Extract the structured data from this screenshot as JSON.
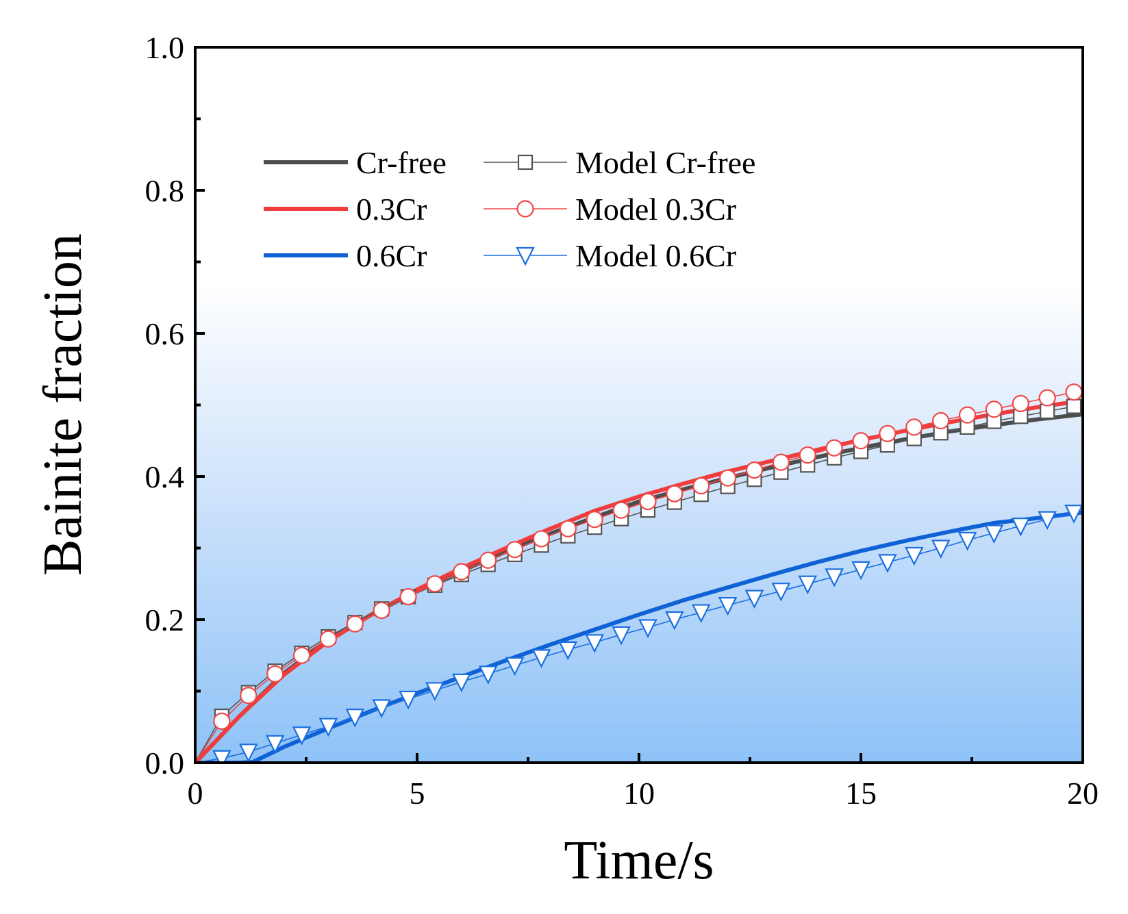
{
  "chart_data": {
    "type": "line",
    "title": "",
    "xlabel": "Time/s",
    "ylabel": "Bainite fraction",
    "xlim": [
      0,
      20
    ],
    "ylim": [
      0.0,
      1.0
    ],
    "xticks": [
      0,
      5,
      10,
      15,
      20
    ],
    "xtick_labels": [
      "0",
      "5",
      "10",
      "15",
      "20"
    ],
    "yticks": [
      0.0,
      0.2,
      0.4,
      0.6,
      0.8,
      1.0
    ],
    "ytick_labels": [
      "0.0",
      "0.2",
      "0.4",
      "0.6",
      "0.8",
      "1.0"
    ],
    "grid": false,
    "background": "vertical gradient: white (top) to light blue (bottom)",
    "colors": {
      "gradient_top": "#ffffff",
      "gradient_mid": "#cfe3fb",
      "gradient_bottom": "#8ec2f7"
    },
    "legend": {
      "position": "upper-left",
      "entries": [
        {
          "label": "Cr-free",
          "series": "exp_crfree"
        },
        {
          "label": "Model Cr-free",
          "series": "model_crfree"
        },
        {
          "label": "0.3Cr",
          "series": "exp_03"
        },
        {
          "label": "Model 0.3Cr",
          "series": "model_03"
        },
        {
          "label": "0.6Cr",
          "series": "exp_06"
        },
        {
          "label": "Model 0.6Cr",
          "series": "model_06"
        }
      ]
    },
    "series": [
      {
        "id": "exp_crfree",
        "name": "Cr-free",
        "style": "line",
        "color": "#4d4d4d",
        "x": [
          0,
          1,
          2,
          3,
          4,
          5,
          6,
          7,
          8,
          9,
          10,
          11,
          12,
          13,
          14,
          15,
          16,
          17,
          18,
          19,
          20
        ],
        "y": [
          0.0,
          0.065,
          0.125,
          0.172,
          0.208,
          0.24,
          0.268,
          0.295,
          0.32,
          0.343,
          0.365,
          0.382,
          0.398,
          0.413,
          0.427,
          0.44,
          0.452,
          0.463,
          0.472,
          0.48,
          0.487
        ]
      },
      {
        "id": "exp_03",
        "name": "0.3Cr",
        "style": "line",
        "color": "#f03c3c",
        "x": [
          0,
          1,
          2,
          3,
          4,
          5,
          6,
          7,
          8,
          9,
          10,
          11,
          12,
          13,
          14,
          15,
          16,
          17,
          18,
          19,
          20
        ],
        "y": [
          0.0,
          0.065,
          0.123,
          0.17,
          0.208,
          0.242,
          0.272,
          0.3,
          0.327,
          0.352,
          0.372,
          0.39,
          0.407,
          0.422,
          0.437,
          0.451,
          0.464,
          0.476,
          0.487,
          0.497,
          0.506
        ]
      },
      {
        "id": "exp_06",
        "name": "0.6Cr",
        "style": "line",
        "color": "#0f62d6",
        "x": [
          0,
          1,
          1.3,
          2,
          3,
          4,
          5,
          6,
          7,
          8,
          9,
          10,
          11,
          12,
          13,
          14,
          15,
          16,
          17,
          18,
          19,
          20
        ],
        "y": [
          0.0,
          0.0,
          0.001,
          0.022,
          0.048,
          0.073,
          0.097,
          0.12,
          0.143,
          0.165,
          0.186,
          0.207,
          0.227,
          0.245,
          0.263,
          0.28,
          0.296,
          0.31,
          0.323,
          0.335,
          0.342,
          0.35
        ]
      },
      {
        "id": "model_crfree",
        "name": "Model Cr-free",
        "style": "line+marker",
        "marker": "square",
        "color": "#555555",
        "x": [
          0,
          0.6,
          1.2,
          1.8,
          2.4,
          3.0,
          3.6,
          4.2,
          4.8,
          5.4,
          6.0,
          6.6,
          7.2,
          7.8,
          8.4,
          9.0,
          9.6,
          10.2,
          10.8,
          11.4,
          12.0,
          12.6,
          13.2,
          13.8,
          14.4,
          15.0,
          15.6,
          16.2,
          16.8,
          17.4,
          18.0,
          18.6,
          19.2,
          19.8,
          20
        ],
        "y": [
          0.0,
          0.065,
          0.098,
          0.128,
          0.153,
          0.176,
          0.196,
          0.215,
          0.232,
          0.248,
          0.263,
          0.277,
          0.291,
          0.304,
          0.317,
          0.329,
          0.341,
          0.353,
          0.364,
          0.375,
          0.386,
          0.396,
          0.406,
          0.416,
          0.426,
          0.435,
          0.444,
          0.453,
          0.461,
          0.469,
          0.477,
          0.484,
          0.491,
          0.498,
          0.501
        ]
      },
      {
        "id": "model_03",
        "name": "Model 0.3Cr",
        "style": "line+marker",
        "marker": "circle",
        "color": "#f04848",
        "x": [
          0,
          0.6,
          1.2,
          1.8,
          2.4,
          3.0,
          3.6,
          4.2,
          4.8,
          5.4,
          6.0,
          6.6,
          7.2,
          7.8,
          8.4,
          9.0,
          9.6,
          10.2,
          10.8,
          11.4,
          12.0,
          12.6,
          13.2,
          13.8,
          14.4,
          15.0,
          15.6,
          16.2,
          16.8,
          17.4,
          18.0,
          18.6,
          19.2,
          19.8,
          20
        ],
        "y": [
          0.0,
          0.058,
          0.094,
          0.124,
          0.15,
          0.173,
          0.194,
          0.213,
          0.232,
          0.25,
          0.267,
          0.283,
          0.298,
          0.313,
          0.327,
          0.34,
          0.353,
          0.365,
          0.376,
          0.387,
          0.398,
          0.409,
          0.42,
          0.43,
          0.44,
          0.45,
          0.46,
          0.469,
          0.478,
          0.486,
          0.494,
          0.502,
          0.51,
          0.518,
          0.521
        ]
      },
      {
        "id": "model_06",
        "name": "Model 0.6Cr",
        "style": "line+marker",
        "marker": "triangle-down",
        "color": "#1c6fe0",
        "x": [
          0,
          0.6,
          1.2,
          1.8,
          2.4,
          3.0,
          3.6,
          4.2,
          4.8,
          5.4,
          6.0,
          6.6,
          7.2,
          7.8,
          8.4,
          9.0,
          9.6,
          10.2,
          10.8,
          11.4,
          12.0,
          12.6,
          13.2,
          13.8,
          14.4,
          15.0,
          15.6,
          16.2,
          16.8,
          17.4,
          18.0,
          18.6,
          19.2,
          19.8,
          20
        ],
        "y": [
          0.0,
          0.006,
          0.015,
          0.027,
          0.039,
          0.051,
          0.064,
          0.077,
          0.089,
          0.101,
          0.113,
          0.124,
          0.136,
          0.147,
          0.158,
          0.168,
          0.179,
          0.189,
          0.2,
          0.21,
          0.22,
          0.23,
          0.24,
          0.25,
          0.26,
          0.27,
          0.28,
          0.29,
          0.3,
          0.311,
          0.321,
          0.331,
          0.34,
          0.349,
          0.353
        ]
      }
    ]
  }
}
